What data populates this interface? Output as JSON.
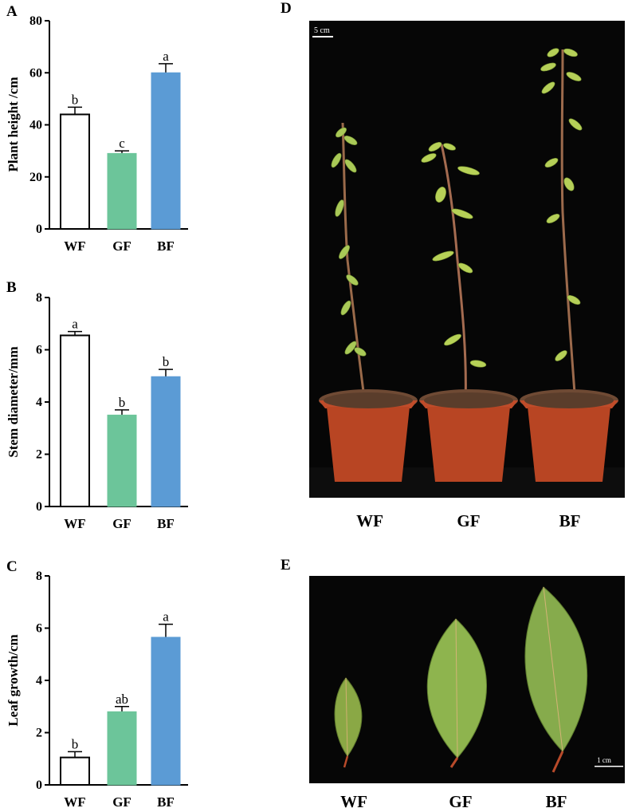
{
  "chart_data": [
    {
      "panel": "A",
      "type": "bar",
      "categories": [
        "WF",
        "GF",
        "BF"
      ],
      "values": [
        44,
        29,
        60
      ],
      "errors": [
        2.8,
        1.0,
        3.5
      ],
      "significance": [
        "b",
        "c",
        "a"
      ],
      "ylabel": "Plant height /cm",
      "ylim": [
        0,
        80
      ],
      "yticks": [
        "0",
        "20",
        "40",
        "60",
        "80"
      ],
      "colors": [
        "#ffffff",
        "#6cc59a",
        "#5b9bd5"
      ]
    },
    {
      "panel": "B",
      "type": "bar",
      "categories": [
        "WF",
        "GF",
        "BF"
      ],
      "values": [
        6.55,
        3.5,
        4.97
      ],
      "errors": [
        0.15,
        0.2,
        0.28
      ],
      "significance": [
        "a",
        "b",
        "b"
      ],
      "ylabel": "Stem diameter/mm",
      "ylim": [
        0,
        8
      ],
      "yticks": [
        "0",
        "2",
        "4",
        "6",
        "8"
      ],
      "colors": [
        "#ffffff",
        "#6cc59a",
        "#5b9bd5"
      ]
    },
    {
      "panel": "C",
      "type": "bar",
      "categories": [
        "WF",
        "GF",
        "BF"
      ],
      "values": [
        1.05,
        2.8,
        5.65
      ],
      "errors": [
        0.22,
        0.2,
        0.5
      ],
      "significance": [
        "b",
        "ab",
        "a"
      ],
      "ylabel": "Leaf growth/cm",
      "ylim": [
        0,
        8
      ],
      "yticks": [
        "0",
        "2",
        "4",
        "6",
        "8"
      ],
      "colors": [
        "#ffffff",
        "#6cc59a",
        "#5b9bd5"
      ]
    }
  ],
  "photo_d": {
    "letter": "D",
    "scale_label": "5 cm",
    "labels": [
      "WF",
      "GF",
      "BF"
    ]
  },
  "photo_e": {
    "letter": "E",
    "scale_label": "1 cm",
    "labels": [
      "WF",
      "GF",
      "BF"
    ]
  }
}
